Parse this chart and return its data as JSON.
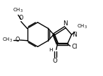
{
  "bg_color": "#ffffff",
  "line_color": "#000000",
  "lw": 1.0,
  "fs": 5.8,
  "xlim": [
    0,
    10
  ],
  "ylim": [
    0,
    7.4
  ]
}
